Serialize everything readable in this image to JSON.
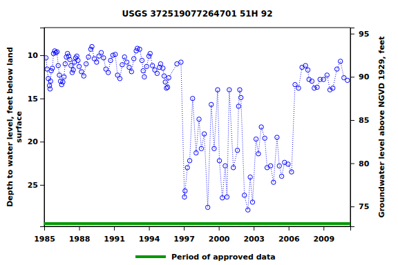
{
  "chart_data": {
    "type": "line",
    "title": "USGS 372519077264701 51H 92",
    "y_label": [
      "Depth to water level, feet below land",
      "surface"
    ],
    "y2_label": "Groundwater level above NGVD 1929, feet",
    "xlim": [
      1985,
      2011.3
    ],
    "xticks": [
      1985,
      1988,
      1991,
      1994,
      1997,
      2000,
      2003,
      2006,
      2009
    ],
    "ylim": [
      29.8,
      6.8
    ],
    "yticks": [
      10,
      15,
      20,
      25
    ],
    "y2lim": [
      72.7,
      95.7
    ],
    "y2ticks": [
      75,
      80,
      85,
      90,
      95
    ],
    "grid": false,
    "series": [
      {
        "name": "Depth to water level",
        "color": "#0000ff",
        "marker": "open-circle",
        "line_style": "dotted",
        "x": [
          1985.15,
          1985.25,
          1985.35,
          1985.45,
          1985.5,
          1985.55,
          1985.6,
          1985.7,
          1985.8,
          1985.9,
          1986.0,
          1986.1,
          1986.2,
          1986.3,
          1986.4,
          1986.5,
          1986.6,
          1986.7,
          1986.8,
          1986.9,
          1987.0,
          1987.1,
          1987.2,
          1987.3,
          1987.4,
          1987.5,
          1987.6,
          1987.7,
          1987.8,
          1987.9,
          1988.0,
          1988.2,
          1988.4,
          1988.6,
          1988.8,
          1989.0,
          1989.1,
          1989.3,
          1989.5,
          1989.7,
          1989.9,
          1990.1,
          1990.3,
          1990.5,
          1990.7,
          1990.9,
          1991.1,
          1991.3,
          1991.5,
          1991.7,
          1991.9,
          1992.1,
          1992.3,
          1992.5,
          1992.7,
          1992.9,
          1993.0,
          1993.2,
          1993.4,
          1993.5,
          1993.6,
          1993.8,
          1994.0,
          1994.1,
          1994.3,
          1994.5,
          1994.7,
          1994.9,
          1995.0,
          1995.2,
          1995.3,
          1995.4,
          1995.5,
          1995.6,
          1995.7,
          1996.4,
          1996.75,
          1997.05,
          1997.1,
          1997.3,
          1997.5,
          1997.75,
          1998.05,
          1998.3,
          1998.5,
          1998.75,
          1999.05,
          1999.35,
          1999.6,
          1999.9,
          2000.05,
          2000.3,
          2000.55,
          2000.7,
          2000.9,
          2001.25,
          2001.6,
          2001.7,
          2001.8,
          2001.9,
          2002.2,
          2002.5,
          2002.7,
          2002.9,
          2003.2,
          2003.4,
          2003.65,
          2003.95,
          2004.15,
          2004.45,
          2004.7,
          2005.0,
          2005.2,
          2005.4,
          2005.65,
          2005.95,
          2006.25,
          2006.55,
          2006.85,
          2007.15,
          2007.45,
          2007.65,
          2007.75,
          2008.0,
          2008.2,
          2008.45,
          2008.7,
          2009.0,
          2009.3,
          2009.55,
          2009.8,
          2010.15,
          2010.45,
          2010.75,
          2011.05
        ],
        "values": [
          10.3,
          11.6,
          12.7,
          13.5,
          13.9,
          13.0,
          11.8,
          11.5,
          9.8,
          9.5,
          9.7,
          9.6,
          11.2,
          12.3,
          13.0,
          13.4,
          13.1,
          12.5,
          11.0,
          10.2,
          9.8,
          10.1,
          10.5,
          11.2,
          12.0,
          11.7,
          10.8,
          10.3,
          10.1,
          10.6,
          11.3,
          11.9,
          12.4,
          11.0,
          10.2,
          9.3,
          9.0,
          10.4,
          10.8,
          10.1,
          9.7,
          10.3,
          11.6,
          12.0,
          10.6,
          10.0,
          9.9,
          12.3,
          12.7,
          11.1,
          10.2,
          10.8,
          11.4,
          11.9,
          10.4,
          9.5,
          9.2,
          9.3,
          10.6,
          11.8,
          12.5,
          11.3,
          10.1,
          9.8,
          11.2,
          11.7,
          12.1,
          11.4,
          11.0,
          11.5,
          12.4,
          13.1,
          13.8,
          13.7,
          12.6,
          11.0,
          10.8,
          26.4,
          25.7,
          23.0,
          22.2,
          15.0,
          21.3,
          17.4,
          20.8,
          19.1,
          27.6,
          15.7,
          20.8,
          14.0,
          22.2,
          26.5,
          22.8,
          26.4,
          14.0,
          23.0,
          21.0,
          15.9,
          14.0,
          14.9,
          26.2,
          27.9,
          24.1,
          27.0,
          19.7,
          21.4,
          18.3,
          19.6,
          23.0,
          22.8,
          24.7,
          19.5,
          22.8,
          24.0,
          22.4,
          22.6,
          23.5,
          13.4,
          13.8,
          11.4,
          11.2,
          11.7,
          12.8,
          13.0,
          13.8,
          13.7,
          12.8,
          12.8,
          12.3,
          14.0,
          13.8,
          11.6,
          10.7,
          12.6,
          12.9
        ]
      }
    ],
    "approved_period": {
      "name": "Period of approved data",
      "color": "#009900",
      "x": [
        1985,
        2011.3
      ]
    }
  }
}
